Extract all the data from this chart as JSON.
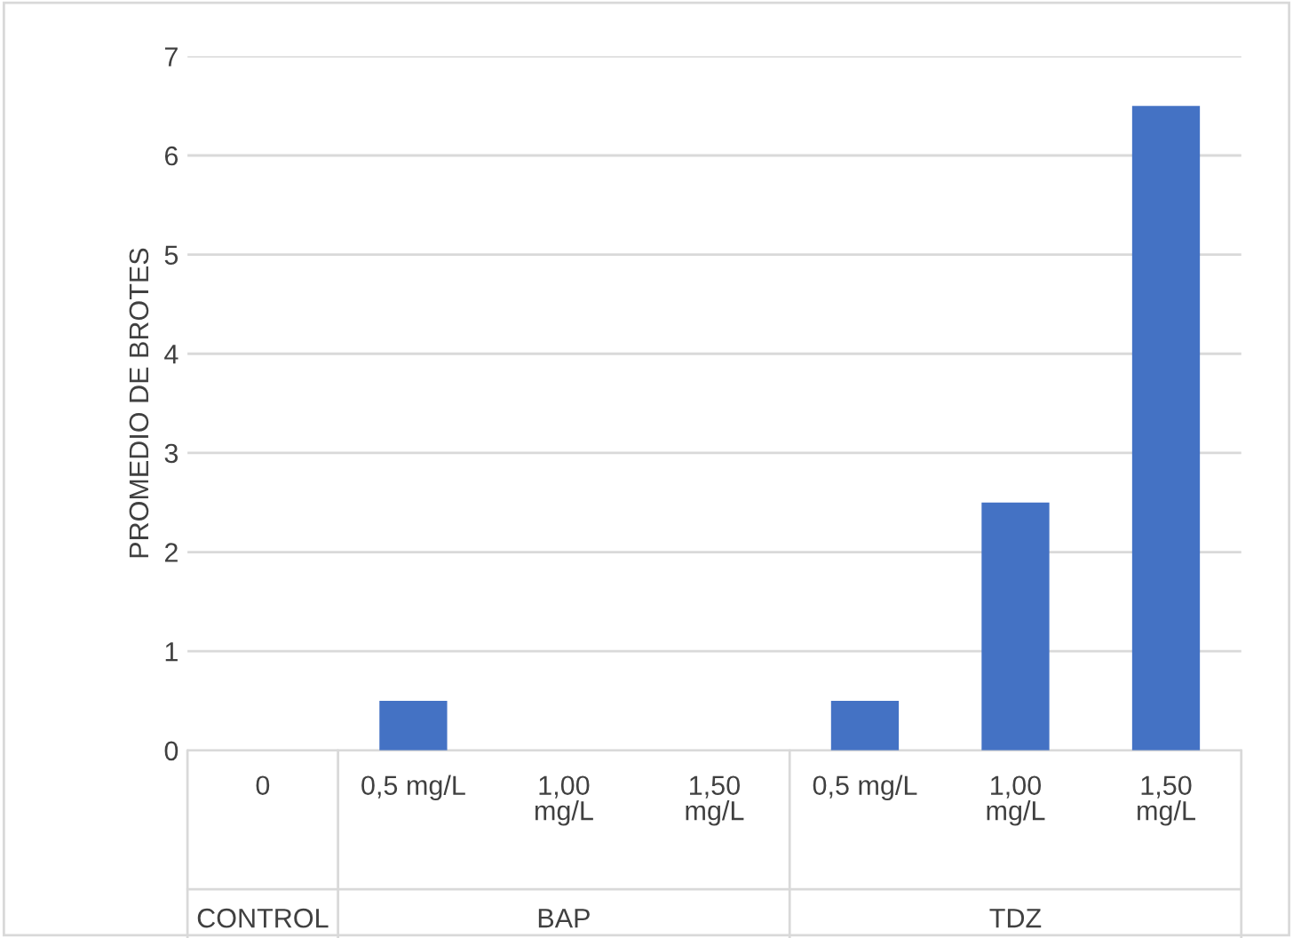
{
  "chart_data": {
    "type": "bar",
    "ylabel": "PROMEDIO DE BROTES",
    "categories": [
      "0",
      "0,5 mg/L",
      "1,00\nmg/L",
      "1,50\nmg/L",
      "0,5 mg/L",
      "1,00\nmg/L",
      "1,50\nmg/L"
    ],
    "values": [
      0,
      0.5,
      0,
      0,
      0.5,
      2.5,
      6.5
    ],
    "color": "#4472c4",
    "ylim": [
      0,
      7
    ],
    "yticks": [
      0,
      1,
      2,
      3,
      4,
      5,
      6,
      7
    ],
    "grid": "y",
    "annotations": [
      "CONTROL",
      "BAP",
      "TDZ"
    ]
  }
}
